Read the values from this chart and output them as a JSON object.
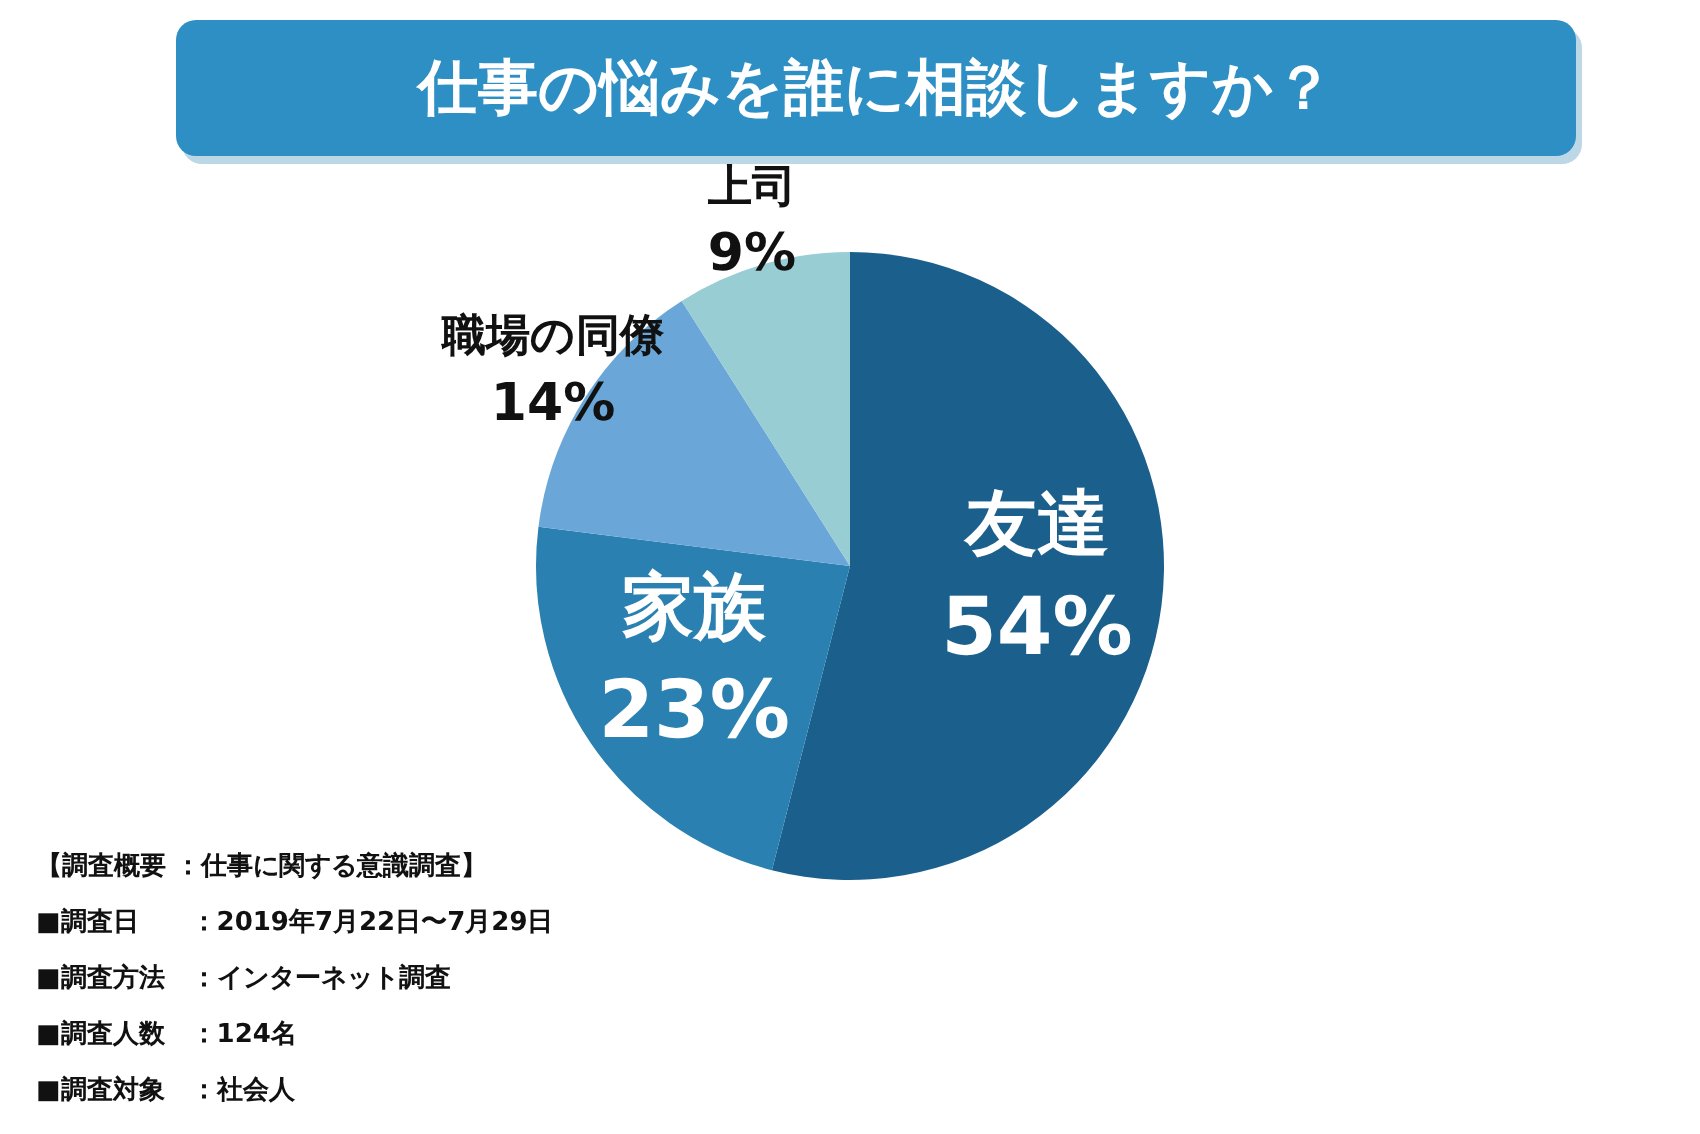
{
  "chart_data": {
    "type": "pie",
    "title": "仕事の悩みを誰に相談しますか？",
    "categories": [
      "友達",
      "家族",
      "職場の同僚",
      "上司"
    ],
    "values": [
      54,
      23,
      14,
      9
    ],
    "value_labels": [
      "54%",
      "23%",
      "14%",
      "9%"
    ],
    "colors": [
      "#1b5f8c",
      "#2a80b0",
      "#6aa7d8",
      "#97cdd3"
    ],
    "legend": false,
    "annotations": [
      "【調査概要 ：仕事に関する意識調査】",
      "■調査日　　：2019年7月22日〜7月29日",
      "■調査方法　：インターネット調査",
      "■調査人数　：124名",
      "■調査対象　：社会人"
    ]
  }
}
